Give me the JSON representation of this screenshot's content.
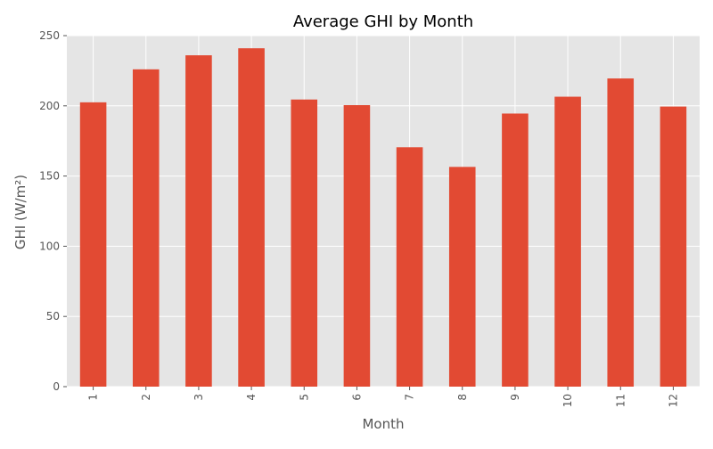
{
  "chart_data": {
    "type": "bar",
    "title": "Average GHI by Month",
    "xlabel": "Month",
    "ylabel": "GHI (W/m²)",
    "categories": [
      "1",
      "2",
      "3",
      "4",
      "5",
      "6",
      "7",
      "8",
      "9",
      "10",
      "11",
      "12"
    ],
    "values": [
      202.5,
      226,
      236,
      241,
      204.5,
      200.5,
      170.5,
      156.5,
      194.5,
      206.5,
      219.5,
      199.5
    ],
    "ylim": [
      0,
      250
    ],
    "yticks": [
      0,
      50,
      100,
      150,
      200,
      250
    ],
    "grid": true,
    "legend": "none",
    "colors": {
      "bar": "#e24a33",
      "plot_background": "#e5e5e5",
      "grid": "#ffffff",
      "text": "#555555",
      "title": "#000000"
    }
  }
}
